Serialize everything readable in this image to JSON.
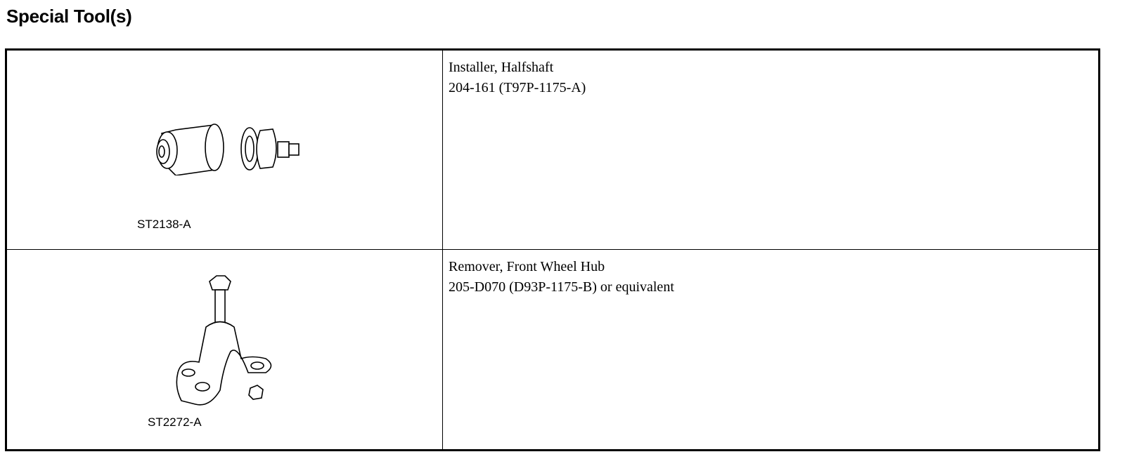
{
  "title": "Special Tool(s)",
  "tools": [
    {
      "illustration_code": "ST2138-A",
      "name": "Installer, Halfshaft",
      "number": "204-161 (T97P-1175-A)"
    },
    {
      "illustration_code": "ST2272-A",
      "name": "Remover, Front Wheel Hub",
      "number": "205-D070 (D93P-1175-B) or equivalent"
    }
  ]
}
